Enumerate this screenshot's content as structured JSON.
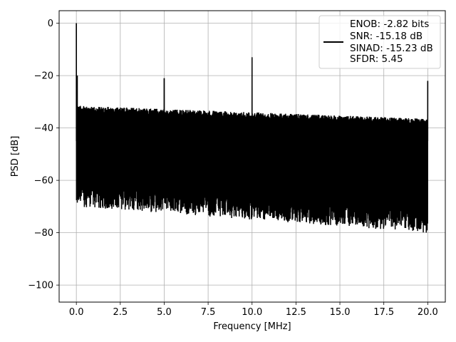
{
  "chart_data": {
    "type": "line",
    "title": "",
    "xlabel": "Frequency [MHz]",
    "ylabel": "PSD [dB]",
    "xlim": [
      -0.98,
      21.0
    ],
    "ylim": [
      -106.5,
      4.8
    ],
    "xticks": [
      0.0,
      2.5,
      5.0,
      7.5,
      10.0,
      12.5,
      15.0,
      17.5,
      20.0
    ],
    "xtick_labels": [
      "0.0",
      "2.5",
      "5.0",
      "7.5",
      "10.0",
      "12.5",
      "15.0",
      "17.5",
      "20.0"
    ],
    "yticks": [
      0,
      -20,
      -40,
      -60,
      -80,
      -100
    ],
    "ytick_labels": [
      "0",
      "−20",
      "−40",
      "−60",
      "−80",
      "−100"
    ],
    "grid": true,
    "legend_position": "top-right",
    "series": [
      {
        "color": "#000000",
        "x_range": [
          0.0,
          20.0
        ],
        "noise_band_top_db": [
          -30,
          -35
        ],
        "noise_band_bottom_db": [
          -70,
          -80
        ],
        "spurs": [
          {
            "x": 0.0,
            "y": 0
          },
          {
            "x": 0.05,
            "y": -20
          },
          {
            "x": 5.0,
            "y": -21
          },
          {
            "x": 10.0,
            "y": -13
          },
          {
            "x": 20.0,
            "y": -22
          }
        ]
      }
    ],
    "legend": {
      "entries": [
        "ENOB: -2.82 bits",
        "SNR: -15.18 dB",
        "SINAD: -15.23 dB",
        "SFDR: 5.45"
      ]
    }
  }
}
